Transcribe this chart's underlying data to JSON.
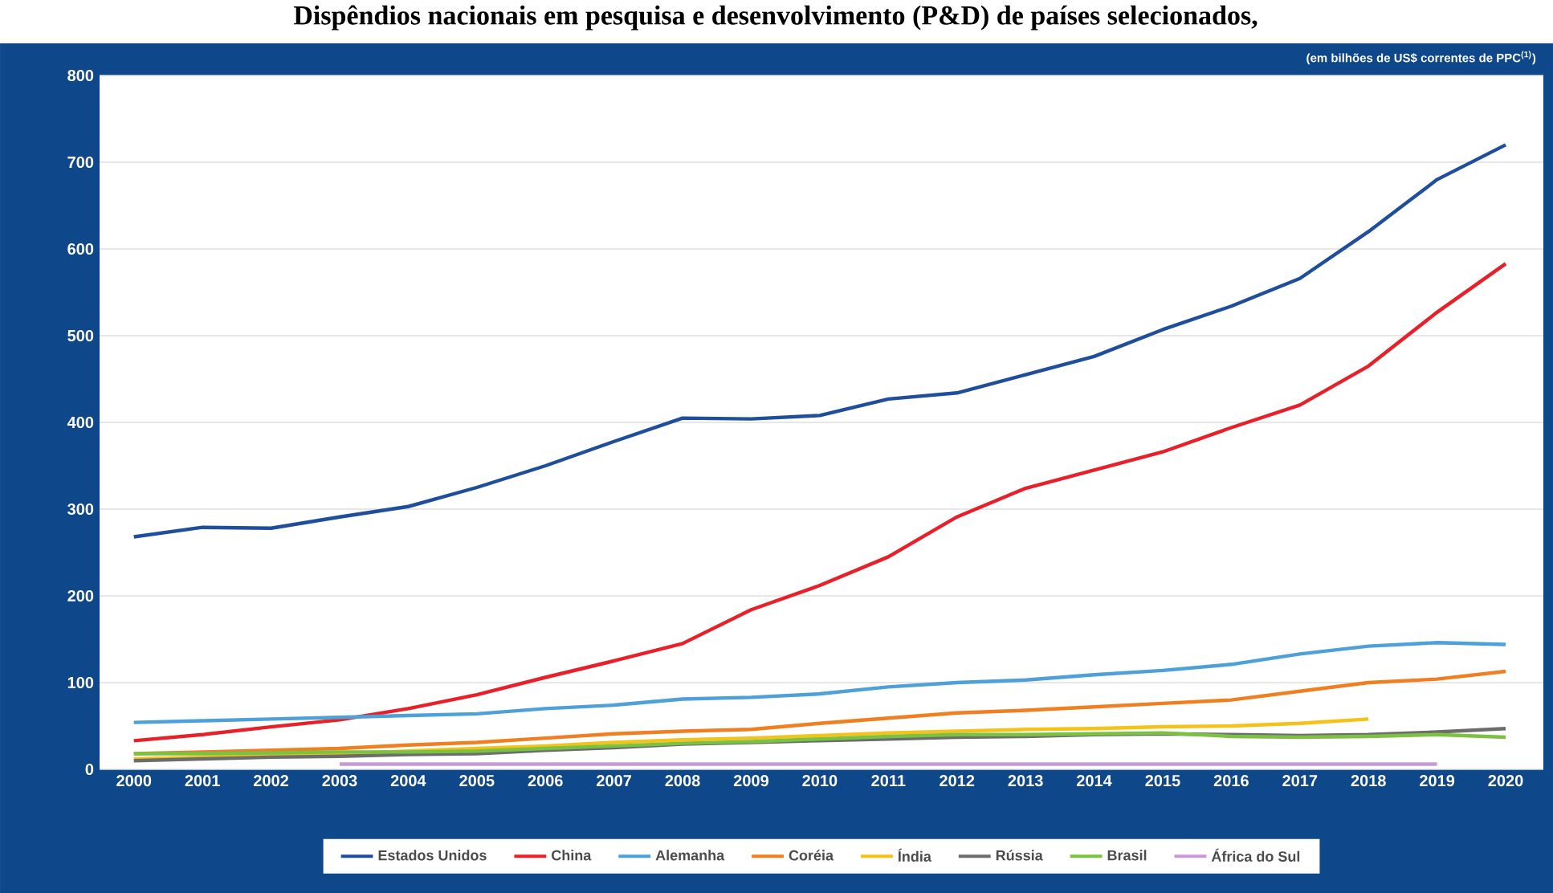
{
  "chart_data": {
    "type": "line",
    "title": "Dispêndios nacionais em pesquisa e desenvolvimento (P&D) de países selecionados,",
    "annotations": [
      "(em bilhões de US$ correntes de PPC$^{(1)}$)"
    ],
    "categories": [
      "2000",
      "2001",
      "2002",
      "2003",
      "2004",
      "2005",
      "2006",
      "2007",
      "2008",
      "2009",
      "2010",
      "2011",
      "2012",
      "2013",
      "2014",
      "2015",
      "2016",
      "2017",
      "2018",
      "2019",
      "2020"
    ],
    "ylim": [
      0,
      800
    ],
    "yticks": [
      0,
      100,
      200,
      300,
      400,
      500,
      600,
      700,
      800
    ],
    "grid": "y",
    "legend": "bottom",
    "marker": "none",
    "line_style": "solid",
    "series": [
      {
        "name": "Estados Unidos",
        "color": "#1f4e9c",
        "values": [
          268,
          279,
          278,
          291,
          303,
          325,
          350,
          378,
          405,
          404,
          408,
          427,
          434,
          455,
          476,
          507,
          534,
          566,
          620,
          680,
          720
        ]
      },
      {
        "name": "China",
        "color": "#e8202a",
        "values": [
          33,
          40,
          49,
          57,
          70,
          86,
          106,
          125,
          145,
          184,
          212,
          245,
          291,
          324,
          345,
          366,
          394,
          420,
          465,
          527,
          583
        ]
      },
      {
        "name": "Alemanha",
        "color": "#4ea0d8",
        "values": [
          54,
          56,
          58,
          60,
          62,
          64,
          70,
          74,
          81,
          83,
          87,
          95,
          100,
          103,
          109,
          114,
          121,
          133,
          142,
          146,
          144
        ]
      },
      {
        "name": "Coréia",
        "color": "#f07f22",
        "values": [
          18,
          20,
          22,
          24,
          28,
          31,
          36,
          41,
          44,
          46,
          53,
          59,
          65,
          68,
          72,
          76,
          80,
          90,
          100,
          104,
          113
        ]
      },
      {
        "name": "Índia",
        "color": "#f5c21a",
        "values": [
          12,
          14,
          16,
          18,
          21,
          24,
          27,
          31,
          34,
          36,
          39,
          42,
          44,
          46,
          47,
          49,
          50,
          53,
          58,
          null,
          null
        ]
      },
      {
        "name": "Rússia",
        "color": "#6d6d6d",
        "values": [
          10,
          12,
          14,
          15,
          17,
          18,
          22,
          25,
          29,
          31,
          33,
          35,
          37,
          38,
          40,
          41,
          40,
          39,
          40,
          43,
          47
        ]
      },
      {
        "name": "Brasil",
        "color": "#7cc242",
        "values": [
          18,
          18,
          19,
          20,
          20,
          21,
          24,
          27,
          30,
          32,
          35,
          38,
          40,
          40,
          41,
          42,
          38,
          37,
          38,
          40,
          37
        ]
      },
      {
        "name": "África do Sul",
        "color": "#c99ad8",
        "values": [
          null,
          null,
          null,
          6,
          6,
          6,
          6,
          6,
          6,
          6,
          6,
          6,
          6,
          6,
          6,
          6,
          6,
          6,
          6,
          6,
          null
        ]
      }
    ]
  }
}
